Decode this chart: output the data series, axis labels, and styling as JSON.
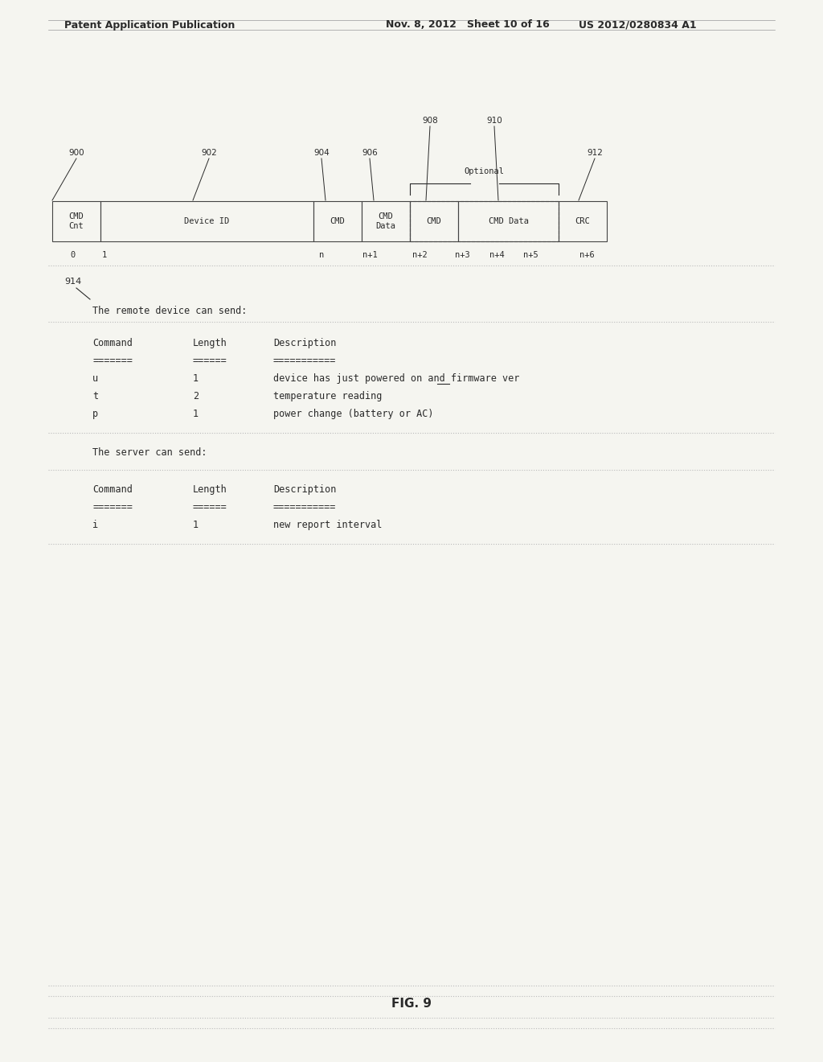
{
  "bg_color": "#f5f5f0",
  "header_text_left": "Patent Application Publication",
  "header_text_mid": "Nov. 8, 2012   Sheet 10 of 16",
  "header_text_right": "US 2012/0280834 A1",
  "fig_label": "FIG. 9",
  "section1_header": "The remote device can send:",
  "section1_table": {
    "col_headers": [
      "Command",
      "Length",
      "Description"
    ],
    "separator": [
      "=======",
      "======",
      "==========="
    ],
    "rows": [
      [
        "u",
        "1",
        "device has just powered on and firmware ver"
      ],
      [
        "t",
        "2",
        "temperature reading"
      ],
      [
        "p",
        "1",
        "power change (battery or AC)"
      ]
    ]
  },
  "section2_header": "The server can send:",
  "section2_table": {
    "col_headers": [
      "Command",
      "Length",
      "Description"
    ],
    "separator": [
      "=======",
      "======",
      "==========="
    ],
    "rows": [
      [
        "i",
        "1",
        "new report interval"
      ]
    ]
  },
  "text_color": "#2a2a2a",
  "box_edge_color": "#444444",
  "dotted_line_color": "#bbbbbb",
  "light_line_color": "#cccccc"
}
